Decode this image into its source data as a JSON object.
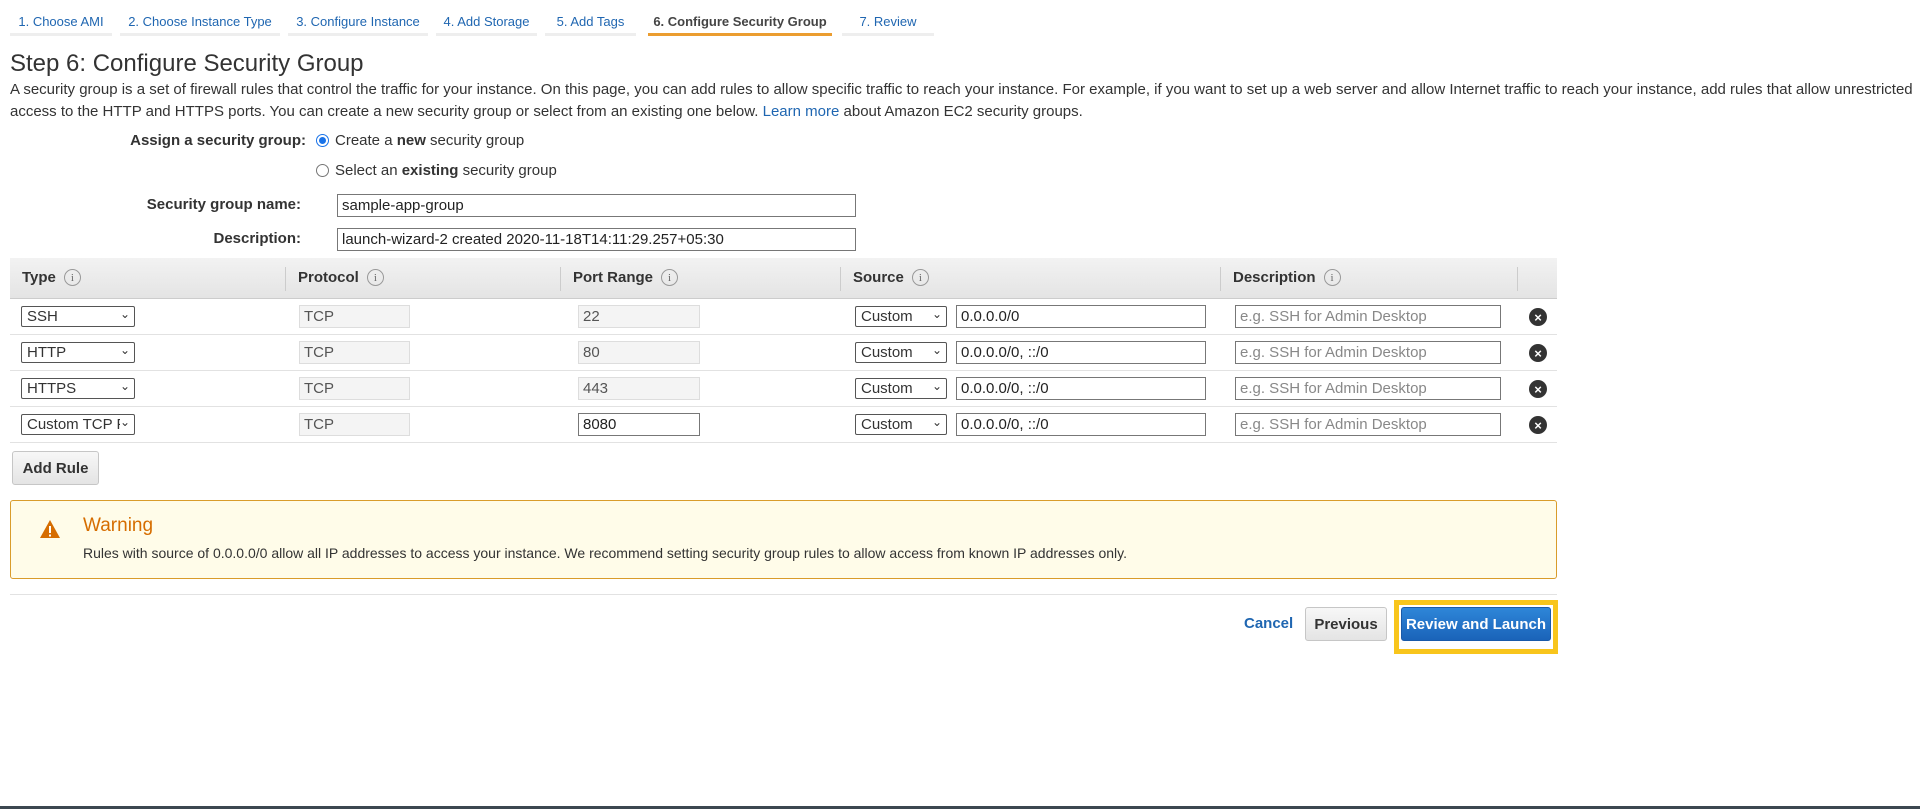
{
  "steps": [
    {
      "label": "1. Choose AMI"
    },
    {
      "label": "2. Choose Instance Type"
    },
    {
      "label": "3. Configure Instance"
    },
    {
      "label": "4. Add Storage"
    },
    {
      "label": "5. Add Tags"
    },
    {
      "label": "6. Configure Security Group",
      "active": true
    },
    {
      "label": "7. Review"
    }
  ],
  "title": "Step 6: Configure Security Group",
  "intro": {
    "text": "A security group is a set of firewall rules that control the traffic for your instance. On this page, you can add rules to allow specific traffic to reach your instance. For example, if you want to set up a web server and allow Internet traffic to reach your instance, add rules that allow unrestricted access to the HTTP and HTTPS ports. You can create a new security group or select from an existing one below.",
    "link": "Learn more",
    "after": "about Amazon EC2 security groups."
  },
  "assign": {
    "label": "Assign a security group:",
    "opt_new": {
      "pre": "Create a ",
      "bold": "new",
      "post": " security group",
      "selected": true
    },
    "opt_existing": {
      "pre": "Select an ",
      "bold": "existing",
      "post": " security group",
      "selected": false
    }
  },
  "group_name": {
    "label": "Security group name:",
    "value": "sample-app-group"
  },
  "group_desc": {
    "label": "Description:",
    "value": "launch-wizard-2 created 2020-11-18T14:11:29.257+05:30"
  },
  "table": {
    "headers": [
      "Type",
      "Protocol",
      "Port Range",
      "Source",
      "Description"
    ],
    "rows": [
      {
        "type": "SSH",
        "protocol": "TCP",
        "port": "22",
        "port_editable": false,
        "source_type": "Custom",
        "source": "0.0.0.0/0",
        "desc_placeholder": "e.g. SSH for Admin Desktop"
      },
      {
        "type": "HTTP",
        "protocol": "TCP",
        "port": "80",
        "port_editable": false,
        "source_type": "Custom",
        "source": "0.0.0.0/0, ::/0",
        "desc_placeholder": "e.g. SSH for Admin Desktop"
      },
      {
        "type": "HTTPS",
        "protocol": "TCP",
        "port": "443",
        "port_editable": false,
        "source_type": "Custom",
        "source": "0.0.0.0/0, ::/0",
        "desc_placeholder": "e.g. SSH for Admin Desktop"
      },
      {
        "type": "Custom TCP F",
        "protocol": "TCP",
        "port": "8080",
        "port_editable": true,
        "source_type": "Custom",
        "source": "0.0.0.0/0, ::/0",
        "desc_placeholder": "e.g. SSH for Admin Desktop"
      }
    ]
  },
  "add_rule": "Add Rule",
  "warning": {
    "title": "Warning",
    "text": "Rules with source of 0.0.0.0/0 allow all IP addresses to access your instance. We recommend setting security group rules to allow access from known IP addresses only."
  },
  "footer": {
    "cancel": "Cancel",
    "previous": "Previous",
    "review": "Review and Launch"
  },
  "colors": {
    "accent": "#eb9d30",
    "link": "#1f66b1",
    "primary": "#1a6fc9",
    "highlight": "#f8c51c",
    "warning": "#d66d00"
  }
}
